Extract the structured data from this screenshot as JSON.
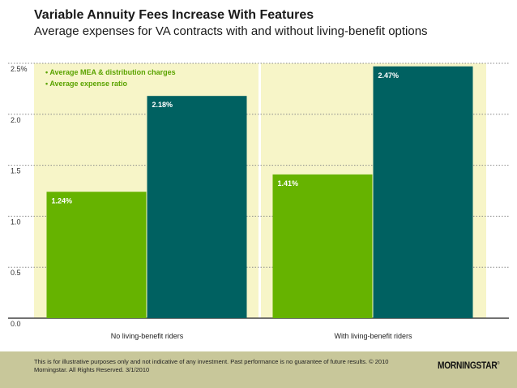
{
  "header": {
    "title": "Variable Annuity Fees Increase With Features",
    "subtitle": "Average expenses for VA contracts with and without living-benefit options"
  },
  "chart_data": {
    "type": "bar",
    "categories": [
      "No living-benefit riders",
      "With living-benefit riders"
    ],
    "series": [
      {
        "name": "Average MEA & distribution charges",
        "values": [
          1.24,
          1.41
        ],
        "labels": [
          "1.24%",
          "1.41%"
        ],
        "color": "#66b300"
      },
      {
        "name": "Average expense ratio",
        "values": [
          2.18,
          2.47
        ],
        "labels": [
          "2.18%",
          "2.47%"
        ],
        "color": "#006161"
      }
    ],
    "yticks": [
      0.0,
      0.5,
      1.0,
      1.5,
      2.0,
      2.5
    ],
    "ytick_labels": [
      "0.0",
      "0.5",
      "1.0",
      "1.5",
      "2.0",
      "2.5%"
    ],
    "ylim": [
      0,
      2.5
    ],
    "grid": true,
    "legend_position": "top-left",
    "plot_background": "#f7f5c8",
    "legend_text_color": "#5aa300"
  },
  "footer": {
    "disclaimer": "This is for illustrative purposes only and not indicative of any investment. Past performance is no guarantee of future results. © 2010 Morningstar. All Rights Reserved. 3/1/2010",
    "logo_text": "MORNINGSTAR",
    "logo_mark": "®"
  }
}
